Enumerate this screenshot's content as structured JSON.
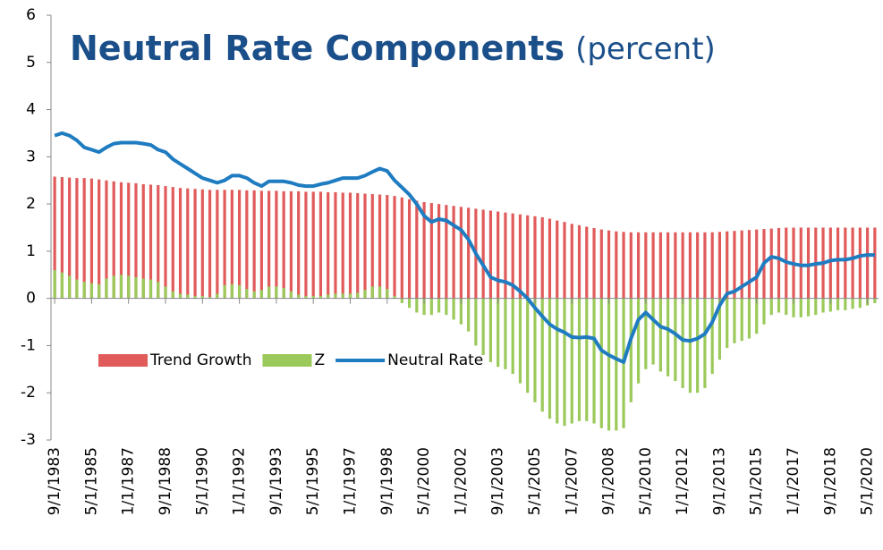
{
  "chart_data": {
    "type": "bar-line",
    "title": "Neutral Rate Components",
    "subtitle": "(percent)",
    "categories": [
      "9/1/1983",
      null,
      null,
      null,
      null,
      "5/1/1985",
      null,
      null,
      null,
      null,
      "1/1/1987",
      null,
      null,
      null,
      null,
      "9/1/1988",
      null,
      null,
      null,
      null,
      "5/1/1990",
      null,
      null,
      null,
      null,
      "1/1/1992",
      null,
      null,
      null,
      null,
      "9/1/1993",
      null,
      null,
      null,
      null,
      "5/1/1995",
      null,
      null,
      null,
      null,
      "1/1/1997",
      null,
      null,
      null,
      null,
      "9/1/1998",
      null,
      null,
      null,
      null,
      "5/1/2000",
      null,
      null,
      null,
      null,
      "1/1/2002",
      null,
      null,
      null,
      null,
      "9/1/2003",
      null,
      null,
      null,
      null,
      "5/1/2005",
      null,
      null,
      null,
      null,
      "1/1/2007",
      null,
      null,
      null,
      null,
      "9/1/2008",
      null,
      null,
      null,
      null,
      "5/1/2010",
      null,
      null,
      null,
      null,
      "1/1/2012",
      null,
      null,
      null,
      null,
      "9/1/2013",
      null,
      null,
      null,
      null,
      "5/1/2015",
      null,
      null,
      null,
      null,
      "1/1/2017",
      null,
      null,
      null,
      null,
      "9/1/2018",
      null,
      null,
      null,
      null,
      "5/1/2020",
      null
    ],
    "series": [
      {
        "name": "Trend Growth",
        "kind": "bar",
        "color": "#e15b5b",
        "values": [
          2.58,
          2.57,
          2.56,
          2.55,
          2.55,
          2.54,
          2.52,
          2.5,
          2.48,
          2.46,
          2.45,
          2.44,
          2.42,
          2.41,
          2.4,
          2.38,
          2.36,
          2.34,
          2.33,
          2.32,
          2.31,
          2.3,
          2.3,
          2.3,
          2.3,
          2.3,
          2.29,
          2.29,
          2.28,
          2.28,
          2.28,
          2.27,
          2.27,
          2.27,
          2.26,
          2.26,
          2.26,
          2.25,
          2.25,
          2.24,
          2.24,
          2.23,
          2.22,
          2.21,
          2.2,
          2.19,
          2.17,
          2.14,
          2.1,
          2.07,
          2.04,
          2.02,
          2.0,
          1.98,
          1.96,
          1.94,
          1.92,
          1.9,
          1.88,
          1.86,
          1.84,
          1.82,
          1.8,
          1.78,
          1.76,
          1.74,
          1.72,
          1.69,
          1.65,
          1.62,
          1.58,
          1.55,
          1.52,
          1.49,
          1.46,
          1.44,
          1.42,
          1.41,
          1.4,
          1.4,
          1.4,
          1.4,
          1.4,
          1.4,
          1.4,
          1.4,
          1.4,
          1.4,
          1.4,
          1.4,
          1.41,
          1.42,
          1.43,
          1.44,
          1.45,
          1.46,
          1.47,
          1.48,
          1.49,
          1.5,
          1.5,
          1.5,
          1.5,
          1.5,
          1.5,
          1.5,
          1.5,
          1.5,
          1.5,
          1.5,
          1.5,
          1.5
        ]
      },
      {
        "name": "Z",
        "kind": "bar",
        "color": "#9bc95a",
        "values": [
          0.6,
          0.55,
          0.48,
          0.4,
          0.35,
          0.32,
          0.3,
          0.42,
          0.48,
          0.5,
          0.48,
          0.45,
          0.42,
          0.4,
          0.35,
          0.25,
          0.15,
          0.1,
          0.08,
          0.05,
          0.05,
          0.03,
          0.1,
          0.28,
          0.3,
          0.28,
          0.2,
          0.15,
          0.18,
          0.25,
          0.25,
          0.22,
          0.15,
          0.08,
          0.05,
          0.05,
          0.05,
          0.08,
          0.1,
          0.1,
          0.1,
          0.12,
          0.18,
          0.25,
          0.25,
          0.2,
          0.05,
          -0.1,
          -0.2,
          -0.3,
          -0.35,
          -0.35,
          -0.3,
          -0.35,
          -0.45,
          -0.55,
          -0.7,
          -1.0,
          -1.2,
          -1.35,
          -1.45,
          -1.5,
          -1.6,
          -1.8,
          -2.0,
          -2.2,
          -2.4,
          -2.55,
          -2.65,
          -2.7,
          -2.65,
          -2.6,
          -2.6,
          -2.65,
          -2.75,
          -2.8,
          -2.8,
          -2.75,
          -2.2,
          -1.8,
          -1.5,
          -1.4,
          -1.55,
          -1.65,
          -1.75,
          -1.9,
          -2.0,
          -2.0,
          -1.9,
          -1.6,
          -1.3,
          -1.05,
          -0.95,
          -0.9,
          -0.85,
          -0.75,
          -0.55,
          -0.35,
          -0.3,
          -0.35,
          -0.4,
          -0.4,
          -0.38,
          -0.35,
          -0.3,
          -0.28,
          -0.25,
          -0.25,
          -0.22,
          -0.2,
          -0.15,
          -0.1
        ]
      },
      {
        "name": "Neutral Rate",
        "kind": "line",
        "color": "#1f7cc1",
        "values": [
          3.45,
          3.5,
          3.45,
          3.35,
          3.2,
          3.15,
          3.1,
          3.2,
          3.28,
          3.3,
          3.3,
          3.3,
          3.28,
          3.25,
          3.15,
          3.1,
          2.95,
          2.85,
          2.75,
          2.65,
          2.55,
          2.5,
          2.45,
          2.5,
          2.6,
          2.6,
          2.55,
          2.45,
          2.38,
          2.48,
          2.48,
          2.48,
          2.45,
          2.4,
          2.38,
          2.38,
          2.42,
          2.45,
          2.5,
          2.55,
          2.55,
          2.55,
          2.6,
          2.68,
          2.75,
          2.7,
          2.5,
          2.35,
          2.2,
          2.0,
          1.75,
          1.62,
          1.68,
          1.65,
          1.55,
          1.45,
          1.25,
          0.95,
          0.7,
          0.45,
          0.38,
          0.35,
          0.28,
          0.15,
          0.0,
          -0.2,
          -0.38,
          -0.55,
          -0.65,
          -0.72,
          -0.82,
          -0.83,
          -0.82,
          -0.85,
          -1.1,
          -1.2,
          -1.28,
          -1.35,
          -0.85,
          -0.45,
          -0.3,
          -0.45,
          -0.6,
          -0.65,
          -0.75,
          -0.88,
          -0.9,
          -0.85,
          -0.75,
          -0.5,
          -0.15,
          0.1,
          0.15,
          0.25,
          0.35,
          0.45,
          0.75,
          0.88,
          0.85,
          0.77,
          0.73,
          0.7,
          0.7,
          0.73,
          0.75,
          0.8,
          0.82,
          0.82,
          0.85,
          0.9,
          0.92,
          0.92
        ]
      }
    ],
    "ylim": [
      -3,
      6
    ],
    "yticks": [
      -3,
      -2,
      -1,
      0,
      1,
      2,
      3,
      4,
      5,
      6
    ],
    "legend": "lower-left"
  }
}
